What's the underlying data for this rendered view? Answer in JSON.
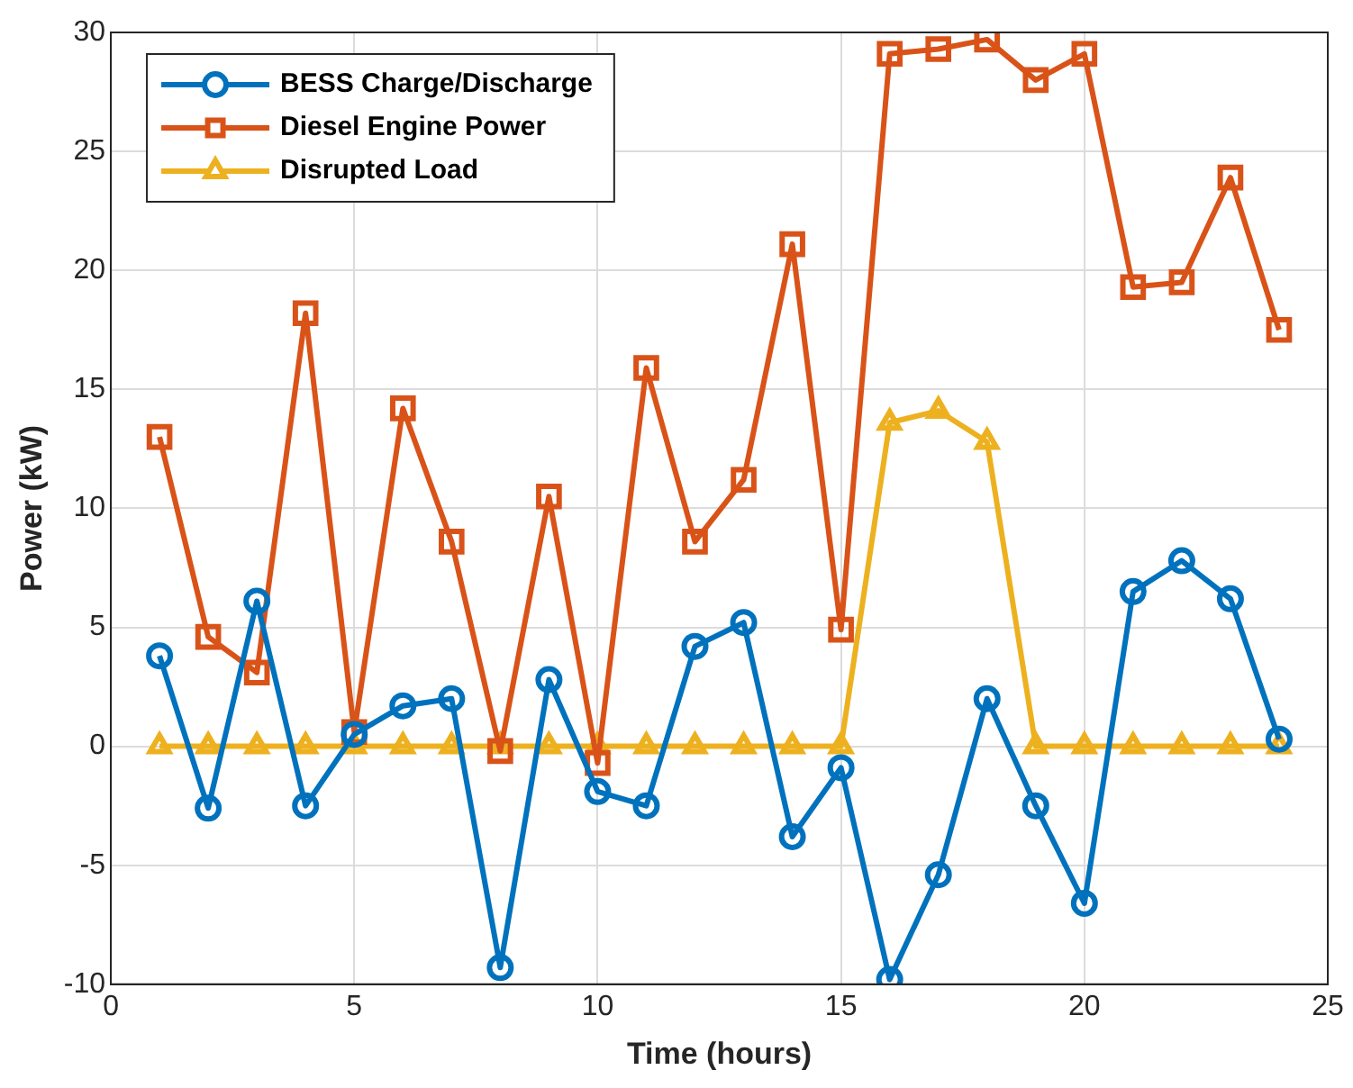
{
  "chart_data": {
    "type": "line",
    "xlabel": "Time (hours)",
    "ylabel": "Power (kW)",
    "x": [
      1,
      2,
      3,
      4,
      5,
      6,
      7,
      8,
      9,
      10,
      11,
      12,
      13,
      14,
      15,
      16,
      17,
      18,
      19,
      20,
      21,
      22,
      23,
      24
    ],
    "xlim": [
      0,
      25
    ],
    "xticks": [
      0,
      5,
      10,
      15,
      20,
      25
    ],
    "ylim": [
      -10,
      30
    ],
    "yticks": [
      -10,
      -5,
      0,
      5,
      10,
      15,
      20,
      25,
      30
    ],
    "grid": true,
    "legend": "top left",
    "line_style": "solid",
    "series": [
      {
        "name": "BESS Charge/Discharge",
        "color": "#0072bd",
        "marker": "circle",
        "values": [
          3.8,
          -2.6,
          6.1,
          -2.5,
          0.5,
          1.7,
          2.0,
          -9.3,
          2.8,
          -1.9,
          -2.5,
          4.2,
          5.2,
          -3.8,
          -0.9,
          -9.8,
          -5.4,
          2.0,
          -2.5,
          -6.6,
          6.5,
          7.8,
          6.2,
          0.3
        ]
      },
      {
        "name": "Diesel Engine Power",
        "color": "#d95319",
        "marker": "square",
        "values": [
          13.0,
          4.6,
          3.1,
          18.2,
          0.6,
          14.2,
          8.6,
          -0.2,
          10.5,
          -0.7,
          15.9,
          8.6,
          11.2,
          21.1,
          4.9,
          29.1,
          29.3,
          29.7,
          28.0,
          29.1,
          19.3,
          19.5,
          23.9,
          17.5
        ]
      },
      {
        "name": "Disrupted Load",
        "color": "#edb120",
        "marker": "triangle",
        "values": [
          0,
          0,
          0,
          0,
          0,
          0,
          0,
          0,
          0,
          0,
          0,
          0,
          0,
          0,
          0,
          13.6,
          14.1,
          12.8,
          0,
          0,
          0,
          0,
          0,
          0
        ]
      }
    ]
  }
}
